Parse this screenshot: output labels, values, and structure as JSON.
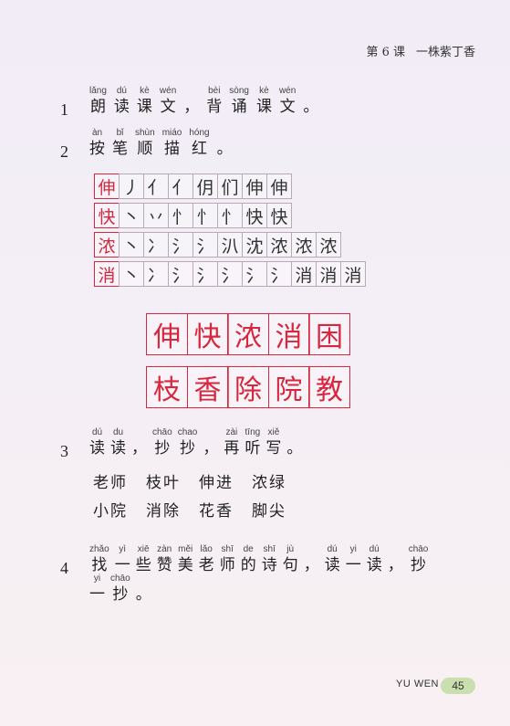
{
  "header": {
    "lesson": "第 6 课",
    "title": "一株紫丁香"
  },
  "item1": {
    "number": "1",
    "chars": [
      {
        "py": "lǎng",
        "hz": "朗"
      },
      {
        "py": "dú",
        "hz": "读"
      },
      {
        "py": "kè",
        "hz": "课"
      },
      {
        "py": "wén",
        "hz": "文"
      },
      {
        "py": "",
        "hz": "，"
      },
      {
        "py": "bèi",
        "hz": "背"
      },
      {
        "py": "sòng",
        "hz": "诵"
      },
      {
        "py": "kè",
        "hz": "课"
      },
      {
        "py": "wén",
        "hz": "文"
      },
      {
        "py": "",
        "hz": "。"
      }
    ]
  },
  "item2": {
    "number": "2",
    "chars": [
      {
        "py": "àn",
        "hz": "按"
      },
      {
        "py": "bǐ",
        "hz": "笔"
      },
      {
        "py": "shùn",
        "hz": "顺"
      },
      {
        "py": "miáo",
        "hz": "描"
      },
      {
        "py": "hóng",
        "hz": "红"
      },
      {
        "py": "",
        "hz": "。"
      }
    ],
    "stroke_rows": [
      [
        "伸",
        "丿",
        "亻",
        "亻",
        "仴",
        "们",
        "伸",
        "伸"
      ],
      [
        "快",
        "丶",
        "丷",
        "忄",
        "忄",
        "忄",
        "快",
        "快"
      ],
      [
        "浓",
        "丶",
        "冫",
        "氵",
        "氵",
        "汃",
        "沈",
        "浓",
        "浓",
        "浓"
      ],
      [
        "消",
        "丶",
        "冫",
        "氵",
        "氵",
        "氵",
        "氵",
        "氵",
        "消",
        "消",
        "消"
      ]
    ],
    "red_rows": [
      [
        "伸",
        "快",
        "浓",
        "消",
        "困"
      ],
      [
        "枝",
        "香",
        "除",
        "院",
        "教"
      ]
    ]
  },
  "item3": {
    "number": "3",
    "chars": [
      {
        "py": "dú",
        "hz": "读"
      },
      {
        "py": "du",
        "hz": "读"
      },
      {
        "py": "",
        "hz": "，"
      },
      {
        "py": "chāo",
        "hz": "抄"
      },
      {
        "py": "chao",
        "hz": "抄"
      },
      {
        "py": "",
        "hz": "，"
      },
      {
        "py": "zài",
        "hz": "再"
      },
      {
        "py": "tīng",
        "hz": "听"
      },
      {
        "py": "xiě",
        "hz": "写"
      },
      {
        "py": "",
        "hz": "。"
      }
    ],
    "words_row1": [
      "老师",
      "枝叶",
      "伸进",
      "浓绿"
    ],
    "words_row2": [
      "小院",
      "消除",
      "花香",
      "脚尖"
    ]
  },
  "item4": {
    "number": "4",
    "chars": [
      {
        "py": "zhǎo",
        "hz": "找"
      },
      {
        "py": "yì",
        "hz": "一"
      },
      {
        "py": "xiē",
        "hz": "些"
      },
      {
        "py": "zàn",
        "hz": "赞"
      },
      {
        "py": "měi",
        "hz": "美"
      },
      {
        "py": "lǎo",
        "hz": "老"
      },
      {
        "py": "shī",
        "hz": "师"
      },
      {
        "py": "de",
        "hz": "的"
      },
      {
        "py": "shī",
        "hz": "诗"
      },
      {
        "py": "jù",
        "hz": "句"
      },
      {
        "py": "",
        "hz": "，"
      },
      {
        "py": "dú",
        "hz": "读"
      },
      {
        "py": "yi",
        "hz": "一"
      },
      {
        "py": "dú",
        "hz": "读"
      },
      {
        "py": "",
        "hz": "，"
      },
      {
        "py": "chāo",
        "hz": "抄"
      }
    ],
    "chars_line2": [
      {
        "py": "yi",
        "hz": "一"
      },
      {
        "py": "chāo",
        "hz": "抄"
      },
      {
        "py": "",
        "hz": "。"
      }
    ]
  },
  "footer": {
    "label": "YU WEN",
    "page": "45"
  },
  "colors": {
    "accent_red": "#d7263d",
    "badge_green": "#c9dfae"
  }
}
